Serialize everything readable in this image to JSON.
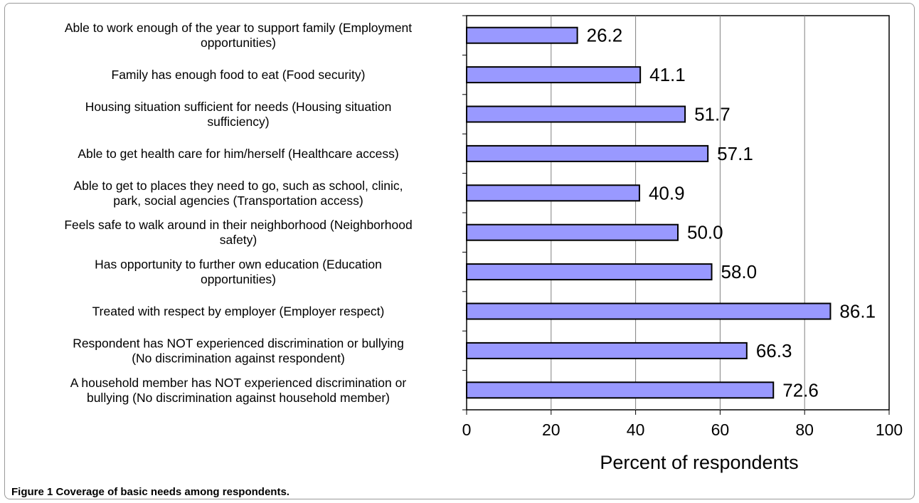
{
  "figure": {
    "caption_label": "Figure 1",
    "caption_text": "Coverage of basic needs among respondents."
  },
  "chart_data": {
    "type": "bar",
    "orientation": "horizontal",
    "categories": [
      [
        "Able to work enough of the year to support family (Employment",
        "opportunities)"
      ],
      [
        "Family has enough food to eat (Food security)"
      ],
      [
        "Housing situation sufficient for needs (Housing situation",
        "sufficiency)"
      ],
      [
        "Able to get health care for him/herself (Healthcare access)"
      ],
      [
        "Able to get to places they need to go, such as school, clinic,",
        "park, social agencies (Transportation access)"
      ],
      [
        "Feels safe to walk around in their neighborhood (Neighborhood",
        "safety)"
      ],
      [
        "Has opportunity to further own education (Education",
        "opportunities)"
      ],
      [
        "Treated with respect by employer (Employer respect)"
      ],
      [
        "Respondent has NOT experienced discrimination or bullying",
        "(No discrimination against respondent)"
      ],
      [
        "A household member has NOT experienced discrimination or",
        "bullying (No discrimination against household member)"
      ]
    ],
    "values": [
      26.2,
      41.1,
      51.7,
      57.1,
      40.9,
      50.0,
      58.0,
      86.1,
      66.3,
      72.6
    ],
    "value_labels": [
      "26.2",
      "41.1",
      "51.7",
      "57.1",
      "40.9",
      "50.0",
      "58.0",
      "86.1",
      "66.3",
      "72.6"
    ],
    "xlabel": "Percent of respondents",
    "xlim": [
      0,
      100
    ],
    "xticks": [
      0,
      20,
      40,
      60,
      80,
      100
    ],
    "grid": "vertical",
    "bar_color": "#9999ff",
    "bar_edge_color": "#000000"
  }
}
